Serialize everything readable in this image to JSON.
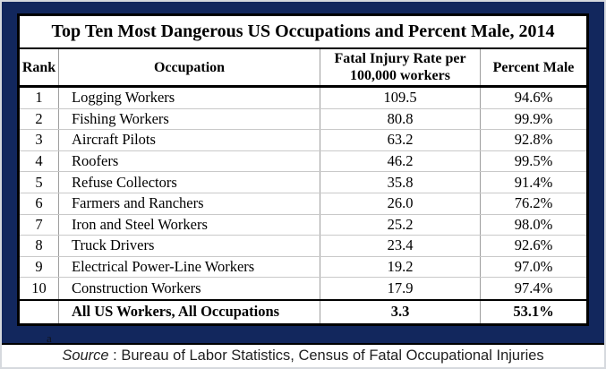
{
  "title": "Top Ten Most Dangerous US Occupations and Percent Male, 2014",
  "columns": {
    "rank": "Rank",
    "occupation": "Occupation",
    "rate_line1": "Fatal Injury Rate per",
    "rate_line2": "100,000 workers",
    "percent": "Percent Male"
  },
  "footnote_marker": "a",
  "source": {
    "prefix": "Source",
    "text": " : Bureau of Labor Statistics, Census of Fatal Occupational Injuries"
  },
  "colors": {
    "frame_navy": "#12275d",
    "outer_edge": "#d6d9de",
    "table_border": "#000000",
    "grid_vertical": "#9e9e9e",
    "grid_horizontal": "#c9c9c9"
  },
  "chart_data": {
    "type": "table",
    "title": "Top Ten Most Dangerous US Occupations and Percent Male, 2014",
    "columns": [
      "Rank",
      "Occupation",
      "Fatal Injury Rate per 100,000 workers",
      "Percent Male"
    ],
    "rows": [
      {
        "rank": "1",
        "occupation": "Logging Workers",
        "rate": "109.5",
        "percent": "94.6%"
      },
      {
        "rank": "2",
        "occupation": "Fishing Workers",
        "rate": "80.8",
        "percent": "99.9%"
      },
      {
        "rank": "3",
        "occupation": "Aircraft Pilots",
        "rate": "63.2",
        "percent": "92.8%"
      },
      {
        "rank": "4",
        "occupation": "Roofers",
        "rate": "46.2",
        "percent": "99.5%"
      },
      {
        "rank": "5",
        "occupation": "Refuse Collectors",
        "rate": "35.8",
        "percent": "91.4%"
      },
      {
        "rank": "6",
        "occupation": "Farmers and Ranchers",
        "rate": "26.0",
        "percent": "76.2%"
      },
      {
        "rank": "7",
        "occupation": "Iron and Steel Workers",
        "rate": "25.2",
        "percent": "98.0%"
      },
      {
        "rank": "8",
        "occupation": "Truck Drivers",
        "rate": "23.4",
        "percent": "92.6%"
      },
      {
        "rank": "9",
        "occupation": "Electrical Power-Line Workers",
        "rate": "19.2",
        "percent": "97.0%"
      },
      {
        "rank": "10",
        "occupation": "Construction Workers",
        "rate": "17.9",
        "percent": "97.4%"
      }
    ],
    "summary_row": {
      "rank": "",
      "occupation": "All US Workers, All Occupations",
      "rate": "3.3",
      "percent": "53.1%"
    },
    "source_note": "Source : Bureau of Labor Statistics, Census of Fatal Occupational Injuries"
  }
}
